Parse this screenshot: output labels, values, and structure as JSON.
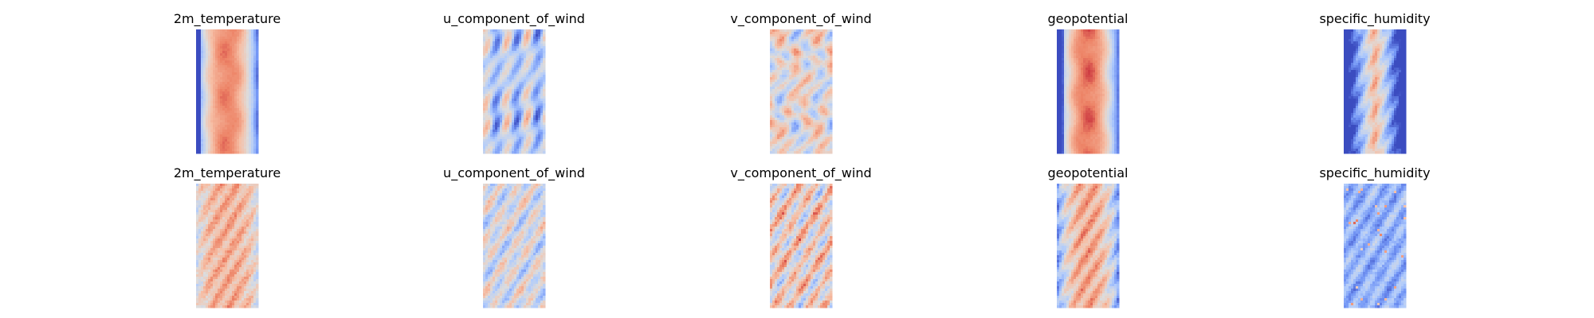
{
  "chart_data": {
    "type": "heatmap",
    "colormap": "coolwarm",
    "colormap_stops": [
      "#3b4cc0",
      "#7396f5",
      "#b0cbfc",
      "#dddcdc",
      "#f6bfa6",
      "#ed8366",
      "#b40426"
    ],
    "grid": false,
    "axes_visible": false,
    "rows": 2,
    "cols": 5,
    "panels": [
      {
        "title": "2m_temperature",
        "pattern": "warm_core"
      },
      {
        "title": "u_component_of_wind",
        "pattern": "bands"
      },
      {
        "title": "v_component_of_wind",
        "pattern": "swirl"
      },
      {
        "title": "geopotential",
        "pattern": "warm_core_strong"
      },
      {
        "title": "specific_humidity",
        "pattern": "moist_core"
      },
      {
        "title": "2m_temperature",
        "pattern": "warm_noisy"
      },
      {
        "title": "u_component_of_wind",
        "pattern": "noise_neutral"
      },
      {
        "title": "v_component_of_wind",
        "pattern": "noise_warm"
      },
      {
        "title": "geopotential",
        "pattern": "warm_core_noisy"
      },
      {
        "title": "specific_humidity",
        "pattern": "cool_noisy"
      }
    ]
  }
}
